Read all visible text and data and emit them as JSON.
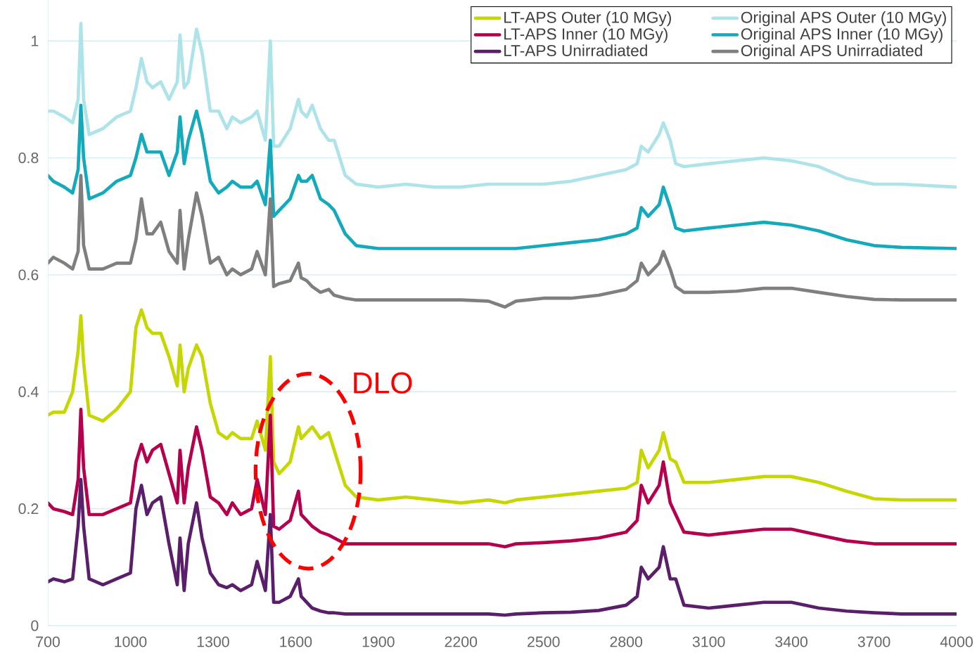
{
  "chart_data": {
    "type": "line",
    "x": [
      700,
      720,
      760,
      790,
      810,
      820,
      830,
      850,
      900,
      950,
      1000,
      1020,
      1040,
      1060,
      1080,
      1110,
      1140,
      1170,
      1180,
      1195,
      1210,
      1240,
      1260,
      1290,
      1320,
      1350,
      1370,
      1400,
      1440,
      1460,
      1490,
      1508,
      1520,
      1540,
      1580,
      1610,
      1620,
      1640,
      1660,
      1690,
      1720,
      1740,
      1780,
      1820,
      1900,
      2000,
      2100,
      2200,
      2300,
      2360,
      2400,
      2500,
      2600,
      2700,
      2800,
      2840,
      2855,
      2880,
      2920,
      2935,
      2960,
      2980,
      3010,
      3100,
      3200,
      3300,
      3400,
      3500,
      3600,
      3700,
      3800,
      4000
    ],
    "series": [
      {
        "name": "LT-APS Outer (10 MGy)",
        "color": "#c5d600",
        "values": [
          0.36,
          0.365,
          0.365,
          0.4,
          0.47,
          0.53,
          0.45,
          0.36,
          0.35,
          0.37,
          0.4,
          0.51,
          0.54,
          0.51,
          0.5,
          0.5,
          0.46,
          0.41,
          0.48,
          0.4,
          0.44,
          0.48,
          0.46,
          0.38,
          0.33,
          0.32,
          0.33,
          0.32,
          0.32,
          0.35,
          0.3,
          0.46,
          0.28,
          0.26,
          0.28,
          0.34,
          0.32,
          0.33,
          0.34,
          0.32,
          0.33,
          0.3,
          0.24,
          0.22,
          0.215,
          0.22,
          0.215,
          0.21,
          0.215,
          0.21,
          0.215,
          0.22,
          0.225,
          0.23,
          0.235,
          0.245,
          0.3,
          0.27,
          0.3,
          0.33,
          0.285,
          0.28,
          0.245,
          0.245,
          0.25,
          0.255,
          0.255,
          0.245,
          0.23,
          0.217,
          0.215,
          0.215
        ]
      },
      {
        "name": "LT-APS Inner (10 MGy)",
        "color": "#b5004e",
        "values": [
          0.21,
          0.2,
          0.195,
          0.19,
          0.25,
          0.37,
          0.27,
          0.19,
          0.19,
          0.2,
          0.21,
          0.28,
          0.31,
          0.28,
          0.3,
          0.31,
          0.26,
          0.21,
          0.3,
          0.21,
          0.27,
          0.34,
          0.3,
          0.22,
          0.21,
          0.19,
          0.21,
          0.19,
          0.2,
          0.25,
          0.19,
          0.36,
          0.17,
          0.165,
          0.18,
          0.23,
          0.19,
          0.18,
          0.17,
          0.16,
          0.155,
          0.15,
          0.14,
          0.14,
          0.14,
          0.14,
          0.14,
          0.14,
          0.14,
          0.135,
          0.14,
          0.142,
          0.145,
          0.15,
          0.16,
          0.18,
          0.24,
          0.21,
          0.24,
          0.28,
          0.21,
          0.19,
          0.16,
          0.155,
          0.16,
          0.165,
          0.165,
          0.155,
          0.145,
          0.14,
          0.14,
          0.14
        ]
      },
      {
        "name": "LT-APS Unirradiated",
        "color": "#5a1e6a",
        "values": [
          0.075,
          0.08,
          0.075,
          0.08,
          0.17,
          0.25,
          0.17,
          0.08,
          0.07,
          0.08,
          0.09,
          0.2,
          0.24,
          0.19,
          0.21,
          0.22,
          0.14,
          0.07,
          0.15,
          0.06,
          0.14,
          0.21,
          0.15,
          0.09,
          0.07,
          0.065,
          0.07,
          0.06,
          0.07,
          0.11,
          0.06,
          0.19,
          0.04,
          0.04,
          0.05,
          0.08,
          0.05,
          0.04,
          0.03,
          0.025,
          0.022,
          0.022,
          0.02,
          0.02,
          0.02,
          0.02,
          0.02,
          0.02,
          0.02,
          0.018,
          0.02,
          0.022,
          0.023,
          0.026,
          0.035,
          0.05,
          0.1,
          0.08,
          0.1,
          0.135,
          0.08,
          0.08,
          0.035,
          0.03,
          0.035,
          0.04,
          0.04,
          0.03,
          0.025,
          0.022,
          0.02,
          0.02
        ]
      },
      {
        "name": "Original APS Outer (10 MGy)",
        "color": "#aee3ea",
        "values": [
          0.88,
          0.88,
          0.87,
          0.86,
          0.9,
          1.03,
          0.9,
          0.84,
          0.85,
          0.87,
          0.88,
          0.92,
          0.97,
          0.93,
          0.92,
          0.93,
          0.9,
          0.93,
          1.01,
          0.92,
          0.93,
          1.02,
          0.98,
          0.88,
          0.88,
          0.85,
          0.87,
          0.86,
          0.87,
          0.88,
          0.83,
          1.0,
          0.82,
          0.82,
          0.85,
          0.9,
          0.88,
          0.87,
          0.89,
          0.85,
          0.83,
          0.83,
          0.77,
          0.755,
          0.75,
          0.755,
          0.75,
          0.75,
          0.755,
          0.755,
          0.755,
          0.755,
          0.76,
          0.77,
          0.78,
          0.79,
          0.82,
          0.81,
          0.84,
          0.86,
          0.83,
          0.79,
          0.785,
          0.79,
          0.795,
          0.8,
          0.795,
          0.785,
          0.765,
          0.755,
          0.755,
          0.75
        ]
      },
      {
        "name": "Original APS Inner (10 MGy)",
        "color": "#14aabb",
        "values": [
          0.77,
          0.76,
          0.75,
          0.74,
          0.78,
          0.89,
          0.8,
          0.73,
          0.74,
          0.76,
          0.77,
          0.8,
          0.84,
          0.81,
          0.81,
          0.81,
          0.77,
          0.81,
          0.87,
          0.79,
          0.83,
          0.88,
          0.84,
          0.76,
          0.74,
          0.75,
          0.76,
          0.75,
          0.75,
          0.76,
          0.72,
          0.83,
          0.7,
          0.71,
          0.73,
          0.77,
          0.76,
          0.76,
          0.77,
          0.73,
          0.72,
          0.71,
          0.67,
          0.65,
          0.645,
          0.645,
          0.645,
          0.645,
          0.645,
          0.645,
          0.645,
          0.65,
          0.655,
          0.66,
          0.67,
          0.68,
          0.715,
          0.7,
          0.72,
          0.75,
          0.715,
          0.68,
          0.675,
          0.68,
          0.685,
          0.69,
          0.685,
          0.675,
          0.66,
          0.65,
          0.647,
          0.645
        ]
      },
      {
        "name": "Original APS Unirradiated",
        "color": "#7f7f7f",
        "values": [
          0.62,
          0.63,
          0.62,
          0.61,
          0.64,
          0.77,
          0.65,
          0.61,
          0.61,
          0.62,
          0.62,
          0.66,
          0.73,
          0.67,
          0.67,
          0.69,
          0.64,
          0.62,
          0.71,
          0.61,
          0.66,
          0.74,
          0.7,
          0.62,
          0.63,
          0.6,
          0.61,
          0.6,
          0.61,
          0.64,
          0.6,
          0.73,
          0.58,
          0.585,
          0.59,
          0.62,
          0.595,
          0.59,
          0.58,
          0.57,
          0.575,
          0.565,
          0.56,
          0.557,
          0.557,
          0.557,
          0.557,
          0.557,
          0.555,
          0.545,
          0.555,
          0.56,
          0.56,
          0.565,
          0.575,
          0.59,
          0.62,
          0.6,
          0.62,
          0.64,
          0.61,
          0.58,
          0.57,
          0.57,
          0.572,
          0.577,
          0.577,
          0.57,
          0.563,
          0.558,
          0.557,
          0.557
        ]
      }
    ],
    "annotations": [
      "DLO"
    ],
    "xlim": [
      700,
      4000
    ],
    "ylim": [
      0,
      1.07
    ],
    "xticks": [
      700,
      1000,
      1300,
      1600,
      1900,
      2200,
      2500,
      2800,
      3100,
      3400,
      3700,
      4000
    ],
    "yticks": [
      0,
      0.2,
      0.4,
      0.6,
      0.8,
      1
    ],
    "grid": "y",
    "legend": "top right"
  }
}
